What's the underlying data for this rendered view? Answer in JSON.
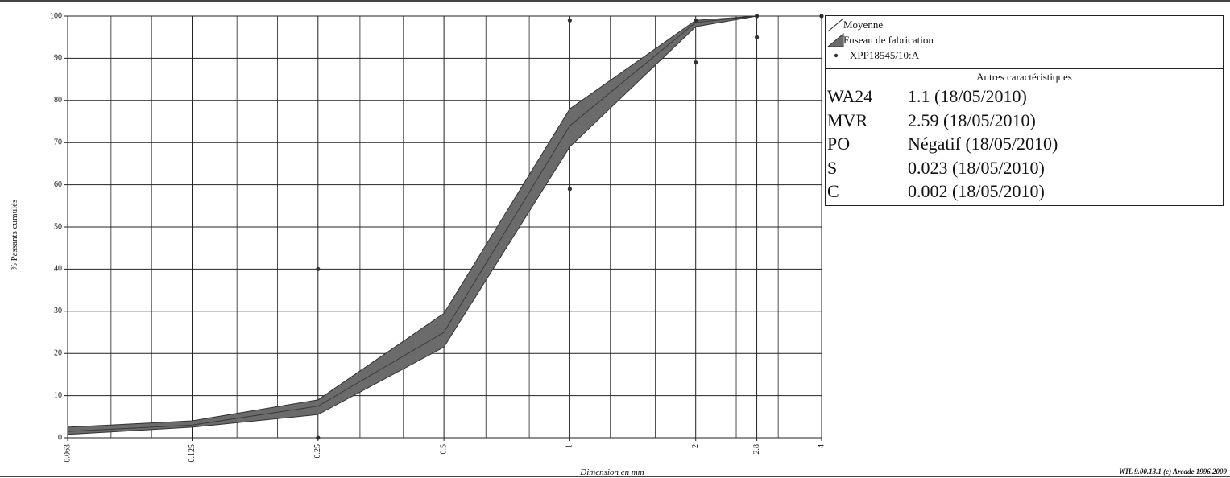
{
  "chart_data": {
    "type": "area",
    "x_scale": "log",
    "xlim": [
      0.063,
      4
    ],
    "ylim": [
      0,
      100
    ],
    "xlabel": "Dimension en mm",
    "ylabel": "% Passants cumulés",
    "grid": true,
    "x_ticks": [
      "0.063",
      "0.125",
      "0.25",
      "0.5",
      "1",
      "2",
      "2.8",
      "4"
    ],
    "y_ticks": [
      "0",
      "10",
      "20",
      "30",
      "40",
      "50",
      "60",
      "70",
      "80",
      "90",
      "100"
    ],
    "x": [
      0.063,
      0.125,
      0.25,
      0.5,
      1,
      2,
      2.8
    ],
    "series": [
      {
        "name": "Moyenne",
        "type": "line",
        "values": [
          1.5,
          3,
          7.5,
          25,
          74,
          98.5,
          100
        ]
      },
      {
        "name": "Fuseau de fabrication",
        "type": "band",
        "upper": [
          2.5,
          4,
          9,
          29.5,
          78,
          99,
          100
        ],
        "lower": [
          0.8,
          2.5,
          5.5,
          21.5,
          69,
          97.5,
          100
        ]
      },
      {
        "name": "XPP18545/10:A",
        "type": "scatter",
        "points": [
          [
            0.25,
            40
          ],
          [
            0.25,
            0
          ],
          [
            1,
            99
          ],
          [
            1,
            59
          ],
          [
            2,
            99
          ],
          [
            2,
            89
          ],
          [
            2.8,
            100
          ],
          [
            2.8,
            95
          ],
          [
            4,
            100
          ]
        ]
      }
    ],
    "legend": "top-right",
    "colors": {
      "band": "#6b6b6b",
      "line": "#3a3a3a",
      "points": "#333333",
      "grid": "#222222"
    }
  },
  "legend": {
    "items": [
      {
        "label": "Moyenne"
      },
      {
        "label": "Fuseau de fabrication"
      },
      {
        "label": "XPP18545/10:A"
      }
    ],
    "characteristics_title": "Autres caractéristiques",
    "characteristics": [
      {
        "key": "WA24",
        "value": "1.1  (18/05/2010)"
      },
      {
        "key": "MVR",
        "value": "2.59  (18/05/2010)"
      },
      {
        "key": "PO",
        "value": "Négatif  (18/05/2010)"
      },
      {
        "key": "S",
        "value": "0.023  (18/05/2010)"
      },
      {
        "key": "C",
        "value": "0.002  (18/05/2010)"
      }
    ]
  },
  "footer": {
    "credit": "WIL 9.00.13.1 (c) Arcade 1996,2009"
  }
}
